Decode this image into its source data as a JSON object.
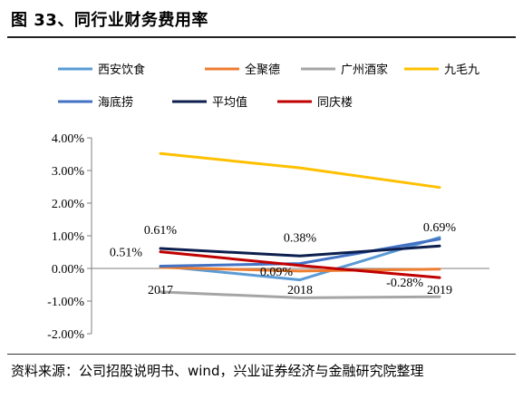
{
  "figure": {
    "title": "图 33、同行业财务费用率",
    "source": "资料来源：公司招股说明书、wind，兴业证券经济与金融研究院整理"
  },
  "chart_data": {
    "type": "line",
    "title": "图 33、同行业财务费用率",
    "xlabel": "",
    "ylabel": "",
    "categories": [
      "2017",
      "2018",
      "2019"
    ],
    "ylim": [
      -0.02,
      0.04
    ],
    "y_ticks": [
      0.04,
      0.03,
      0.02,
      0.01,
      0.0,
      -0.01,
      -0.02
    ],
    "y_tick_labels": [
      "4.00%",
      "3.00%",
      "2.00%",
      "1.00%",
      "0.00%",
      "-1.00%",
      "-2.00%"
    ],
    "grid": false,
    "legend_position": "top",
    "series": [
      {
        "name": "西安饮食",
        "color": "#5b9bd5",
        "values": [
          0.0007,
          -0.0035,
          0.0095
        ]
      },
      {
        "name": "全聚德",
        "color": "#ed7d31",
        "values": [
          0.0003,
          -0.0008,
          -0.0002
        ]
      },
      {
        "name": "广州酒家",
        "color": "#a5a5a5",
        "values": [
          -0.0072,
          -0.009,
          -0.0087
        ]
      },
      {
        "name": "九毛九",
        "color": "#ffc000",
        "values": [
          0.0352,
          0.0308,
          0.0248
        ]
      },
      {
        "name": "海底捞",
        "color": "#4472c4",
        "values": [
          0.0007,
          0.0015,
          0.009
        ]
      },
      {
        "name": "平均值",
        "color": "#0d1f4e",
        "values": [
          0.0061,
          0.0038,
          0.0069
        ]
      },
      {
        "name": "同庆楼",
        "color": "#c00000",
        "values": [
          0.0051,
          0.0009,
          -0.0028
        ]
      }
    ],
    "data_labels": [
      {
        "series": "平均值",
        "index": 0,
        "text": "0.61%",
        "pos": "above"
      },
      {
        "series": "平均值",
        "index": 1,
        "text": "0.38%",
        "pos": "above"
      },
      {
        "series": "平均值",
        "index": 2,
        "text": "0.69%",
        "pos": "above"
      },
      {
        "series": "同庆楼",
        "index": 0,
        "text": "0.51%",
        "pos": "left"
      },
      {
        "series": "同庆楼",
        "index": 1,
        "text": "0.09%",
        "pos": "below"
      },
      {
        "series": "同庆楼",
        "index": 2,
        "text": "-0.28%",
        "pos": "left"
      }
    ]
  }
}
